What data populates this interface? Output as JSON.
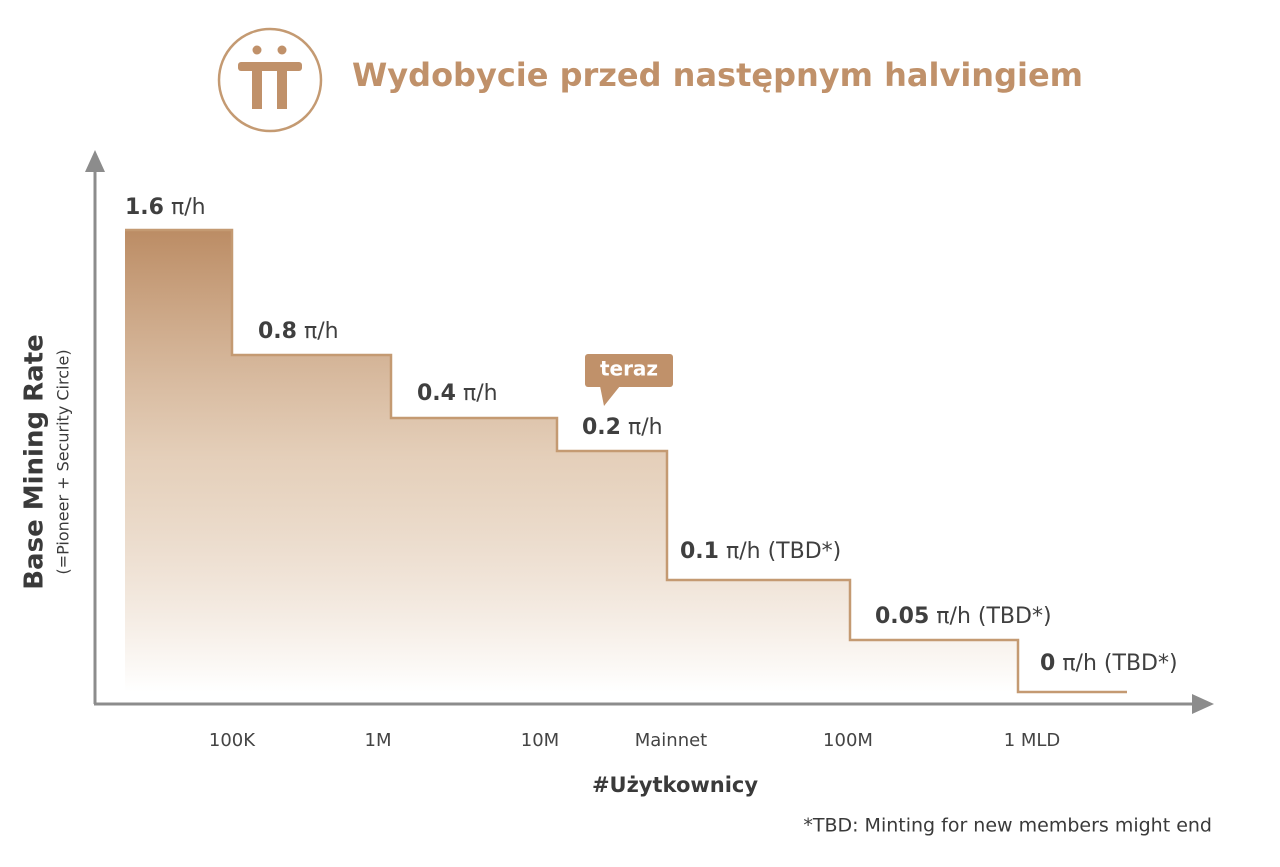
{
  "header": {
    "title": "Wydobycie przed następnym halvingiem"
  },
  "y_axis": {
    "title": "Base Mining Rate",
    "subtitle": "(=Pioneer + Security Circle)"
  },
  "x_axis": {
    "title": "#Użytkownicy",
    "labels": [
      "100K",
      "1M",
      "10M",
      "Mainnet",
      "100M",
      "1 MLD"
    ]
  },
  "steps": [
    {
      "rate": 1.6,
      "unit": "π/h"
    },
    {
      "rate": 0.8,
      "unit": "π/h"
    },
    {
      "rate": 0.4,
      "unit": "π/h"
    },
    {
      "rate": 0.2,
      "unit": "π/h"
    },
    {
      "rate": 0.1,
      "unit": "π/h",
      "note": "(TBD*)"
    },
    {
      "rate": 0.05,
      "unit": "π/h",
      "note": "(TBD*)"
    },
    {
      "rate": 0,
      "unit": "π/h",
      "note": "(TBD*)"
    }
  ],
  "badge": "teraz",
  "footnote": "*TBD: Minting for new members might end"
}
